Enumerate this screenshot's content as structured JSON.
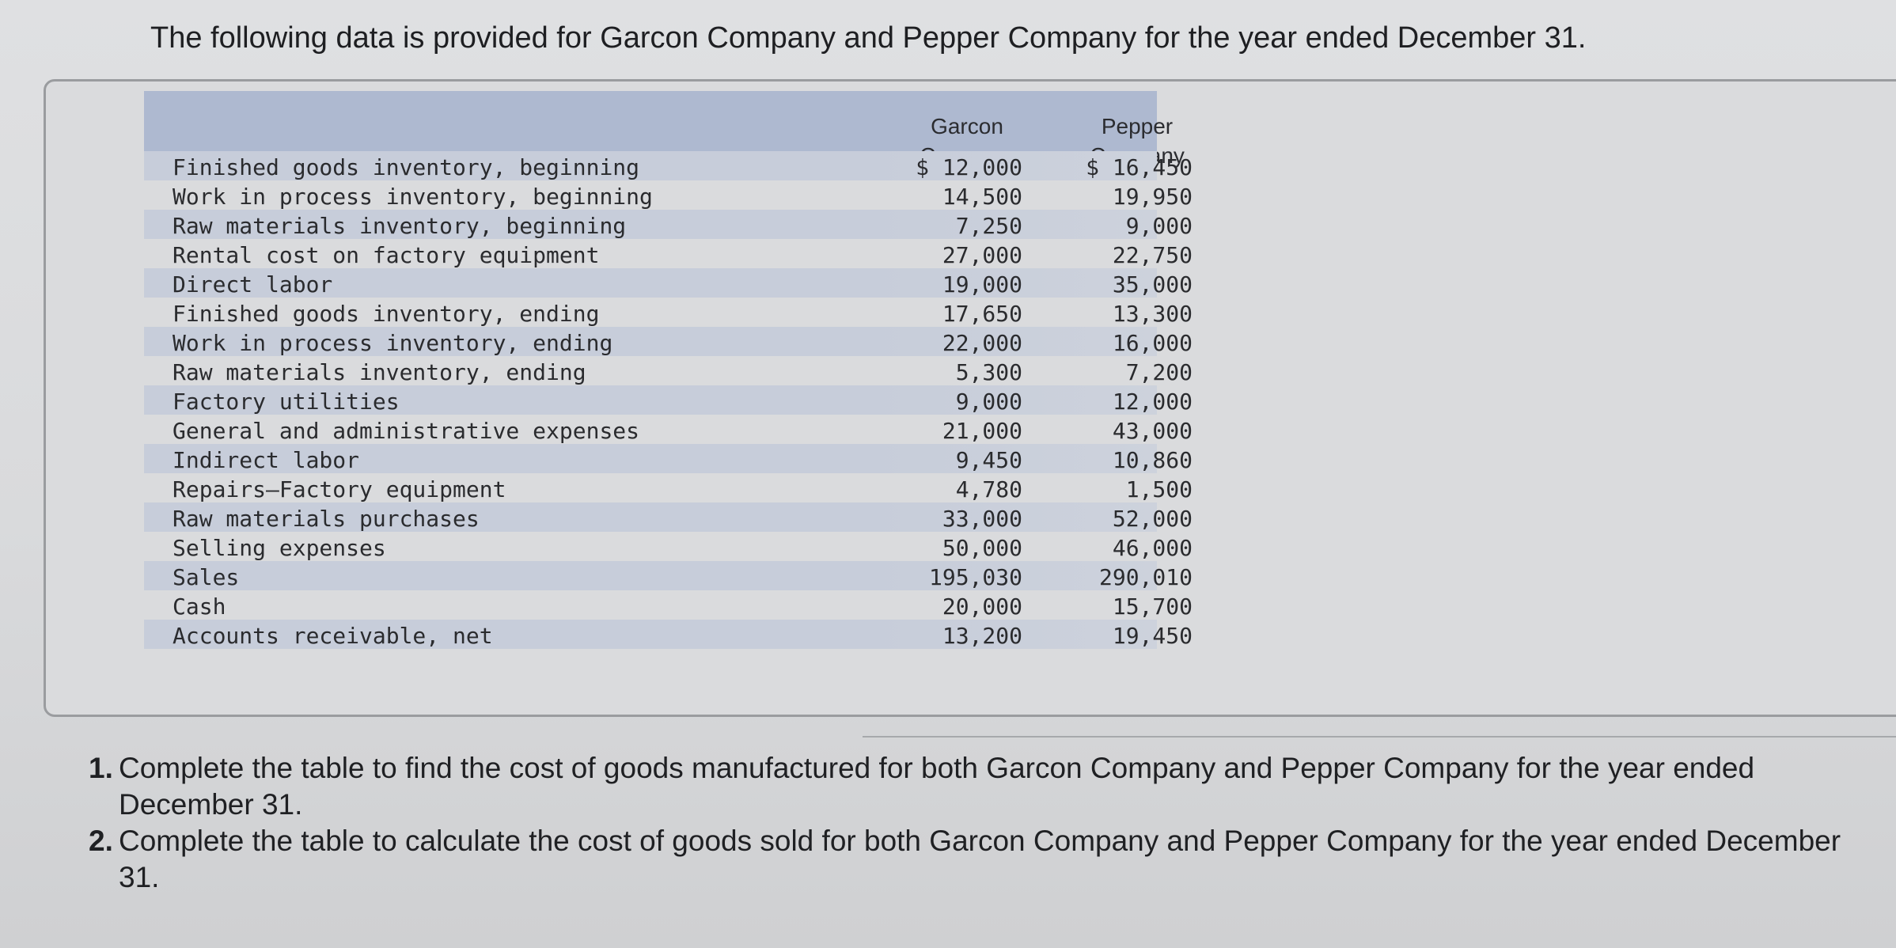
{
  "intro": "The following data is provided for Garcon Company and Pepper Company for the year ended December 31.",
  "table": {
    "columns": [
      "Garcon Company",
      "Pepper Company"
    ],
    "rows": [
      {
        "label": "Finished goods inventory, beginning",
        "garcon": "$ 12,000",
        "pepper": "$ 16,450"
      },
      {
        "label": "Work in process inventory, beginning",
        "garcon": "14,500",
        "pepper": "19,950"
      },
      {
        "label": "Raw materials inventory, beginning",
        "garcon": "7,250",
        "pepper": "9,000"
      },
      {
        "label": "Rental cost on factory equipment",
        "garcon": "27,000",
        "pepper": "22,750"
      },
      {
        "label": "Direct labor",
        "garcon": "19,000",
        "pepper": "35,000"
      },
      {
        "label": "Finished goods inventory, ending",
        "garcon": "17,650",
        "pepper": "13,300"
      },
      {
        "label": "Work in process inventory, ending",
        "garcon": "22,000",
        "pepper": "16,000"
      },
      {
        "label": "Raw materials inventory, ending",
        "garcon": "5,300",
        "pepper": "7,200"
      },
      {
        "label": "Factory utilities",
        "garcon": "9,000",
        "pepper": "12,000"
      },
      {
        "label": "General and administrative expenses",
        "garcon": "21,000",
        "pepper": "43,000"
      },
      {
        "label": "Indirect labor",
        "garcon": "9,450",
        "pepper": "10,860"
      },
      {
        "label": "Repairs—Factory equipment",
        "garcon": "4,780",
        "pepper": "1,500"
      },
      {
        "label": "Raw materials purchases",
        "garcon": "33,000",
        "pepper": "52,000"
      },
      {
        "label": "Selling expenses",
        "garcon": "50,000",
        "pepper": "46,000"
      },
      {
        "label": "Sales",
        "garcon": "195,030",
        "pepper": "290,010"
      },
      {
        "label": "Cash",
        "garcon": "20,000",
        "pepper": "15,700"
      },
      {
        "label": "Accounts receivable, net",
        "garcon": "13,200",
        "pepper": "19,450"
      }
    ]
  },
  "questions": [
    {
      "num": "1.",
      "text": "Complete the table to find the cost of goods manufactured for both Garcon Company and Pepper Company for the year ended December 31."
    },
    {
      "num": "2.",
      "text": "Complete the table to calculate the cost of goods sold for both Garcon Company and Pepper Company for the year ended December 31."
    }
  ]
}
